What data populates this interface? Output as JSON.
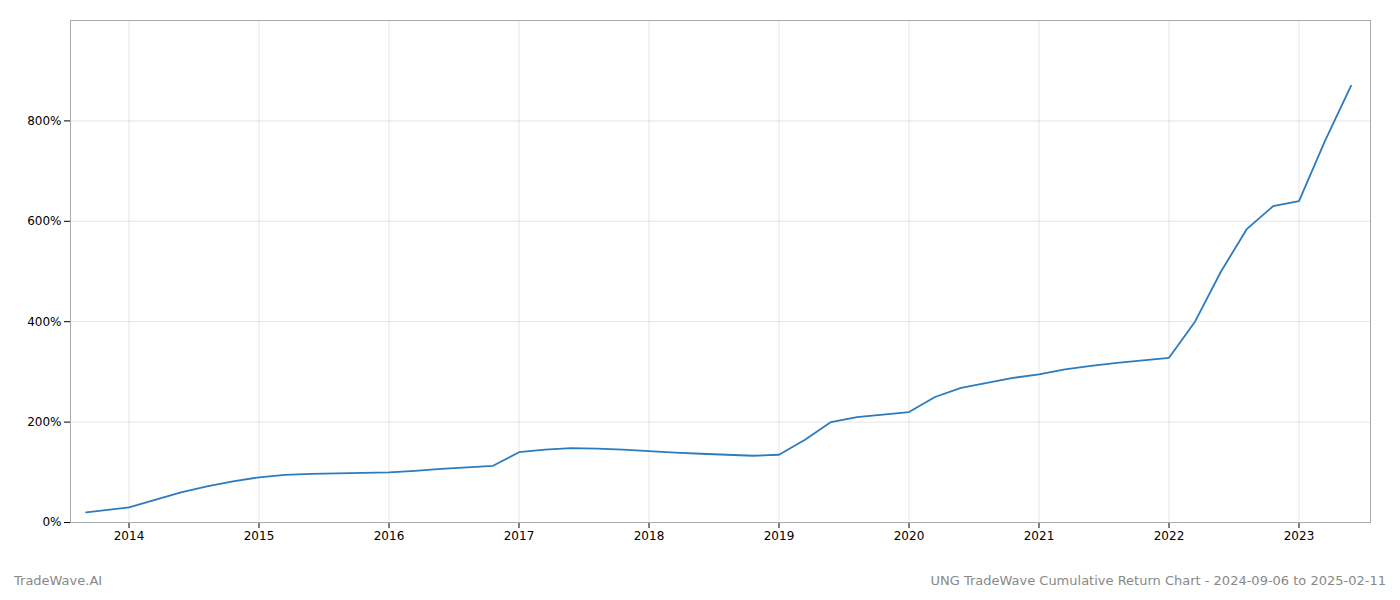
{
  "chart_data": {
    "type": "line",
    "title": "UNG TradeWave Cumulative Return Chart - 2024-09-06 to 2025-02-11",
    "annotations": [
      "TradeWave.AI"
    ],
    "x": [
      2013.67,
      2014.0,
      2014.2,
      2014.4,
      2014.6,
      2014.8,
      2015.0,
      2015.2,
      2015.4,
      2015.6,
      2015.8,
      2016.0,
      2016.2,
      2016.4,
      2016.6,
      2016.8,
      2017.0,
      2017.2,
      2017.4,
      2017.6,
      2017.8,
      2018.0,
      2018.2,
      2018.4,
      2018.6,
      2018.8,
      2019.0,
      2019.2,
      2019.4,
      2019.6,
      2019.8,
      2020.0,
      2020.2,
      2020.4,
      2020.6,
      2020.8,
      2021.0,
      2021.2,
      2021.4,
      2021.6,
      2021.8,
      2022.0,
      2022.2,
      2022.4,
      2022.6,
      2022.8,
      2023.0,
      2023.2,
      2023.4
    ],
    "values": [
      20,
      30,
      45,
      60,
      72,
      82,
      90,
      95,
      97,
      98,
      99,
      100,
      103,
      107,
      110,
      113,
      140,
      145,
      148,
      147,
      145,
      142,
      139,
      137,
      135,
      133,
      135,
      165,
      200,
      210,
      215,
      220,
      250,
      268,
      278,
      288,
      295,
      305,
      312,
      318,
      323,
      328,
      400,
      500,
      585,
      630,
      640,
      760,
      870
    ],
    "color": "#2b7bbf",
    "xlim": [
      2013.55,
      2023.55
    ],
    "xticks": [
      2014,
      2015,
      2016,
      2017,
      2018,
      2019,
      2020,
      2021,
      2022,
      2023
    ],
    "ylim": [
      0,
      1000
    ],
    "yticks": [
      {
        "value": 0,
        "label": "0%"
      },
      {
        "value": 200,
        "label": "200%"
      },
      {
        "value": 400,
        "label": "400%"
      },
      {
        "value": 600,
        "label": "600%"
      },
      {
        "value": 800,
        "label": "800%"
      }
    ],
    "grid": true
  }
}
